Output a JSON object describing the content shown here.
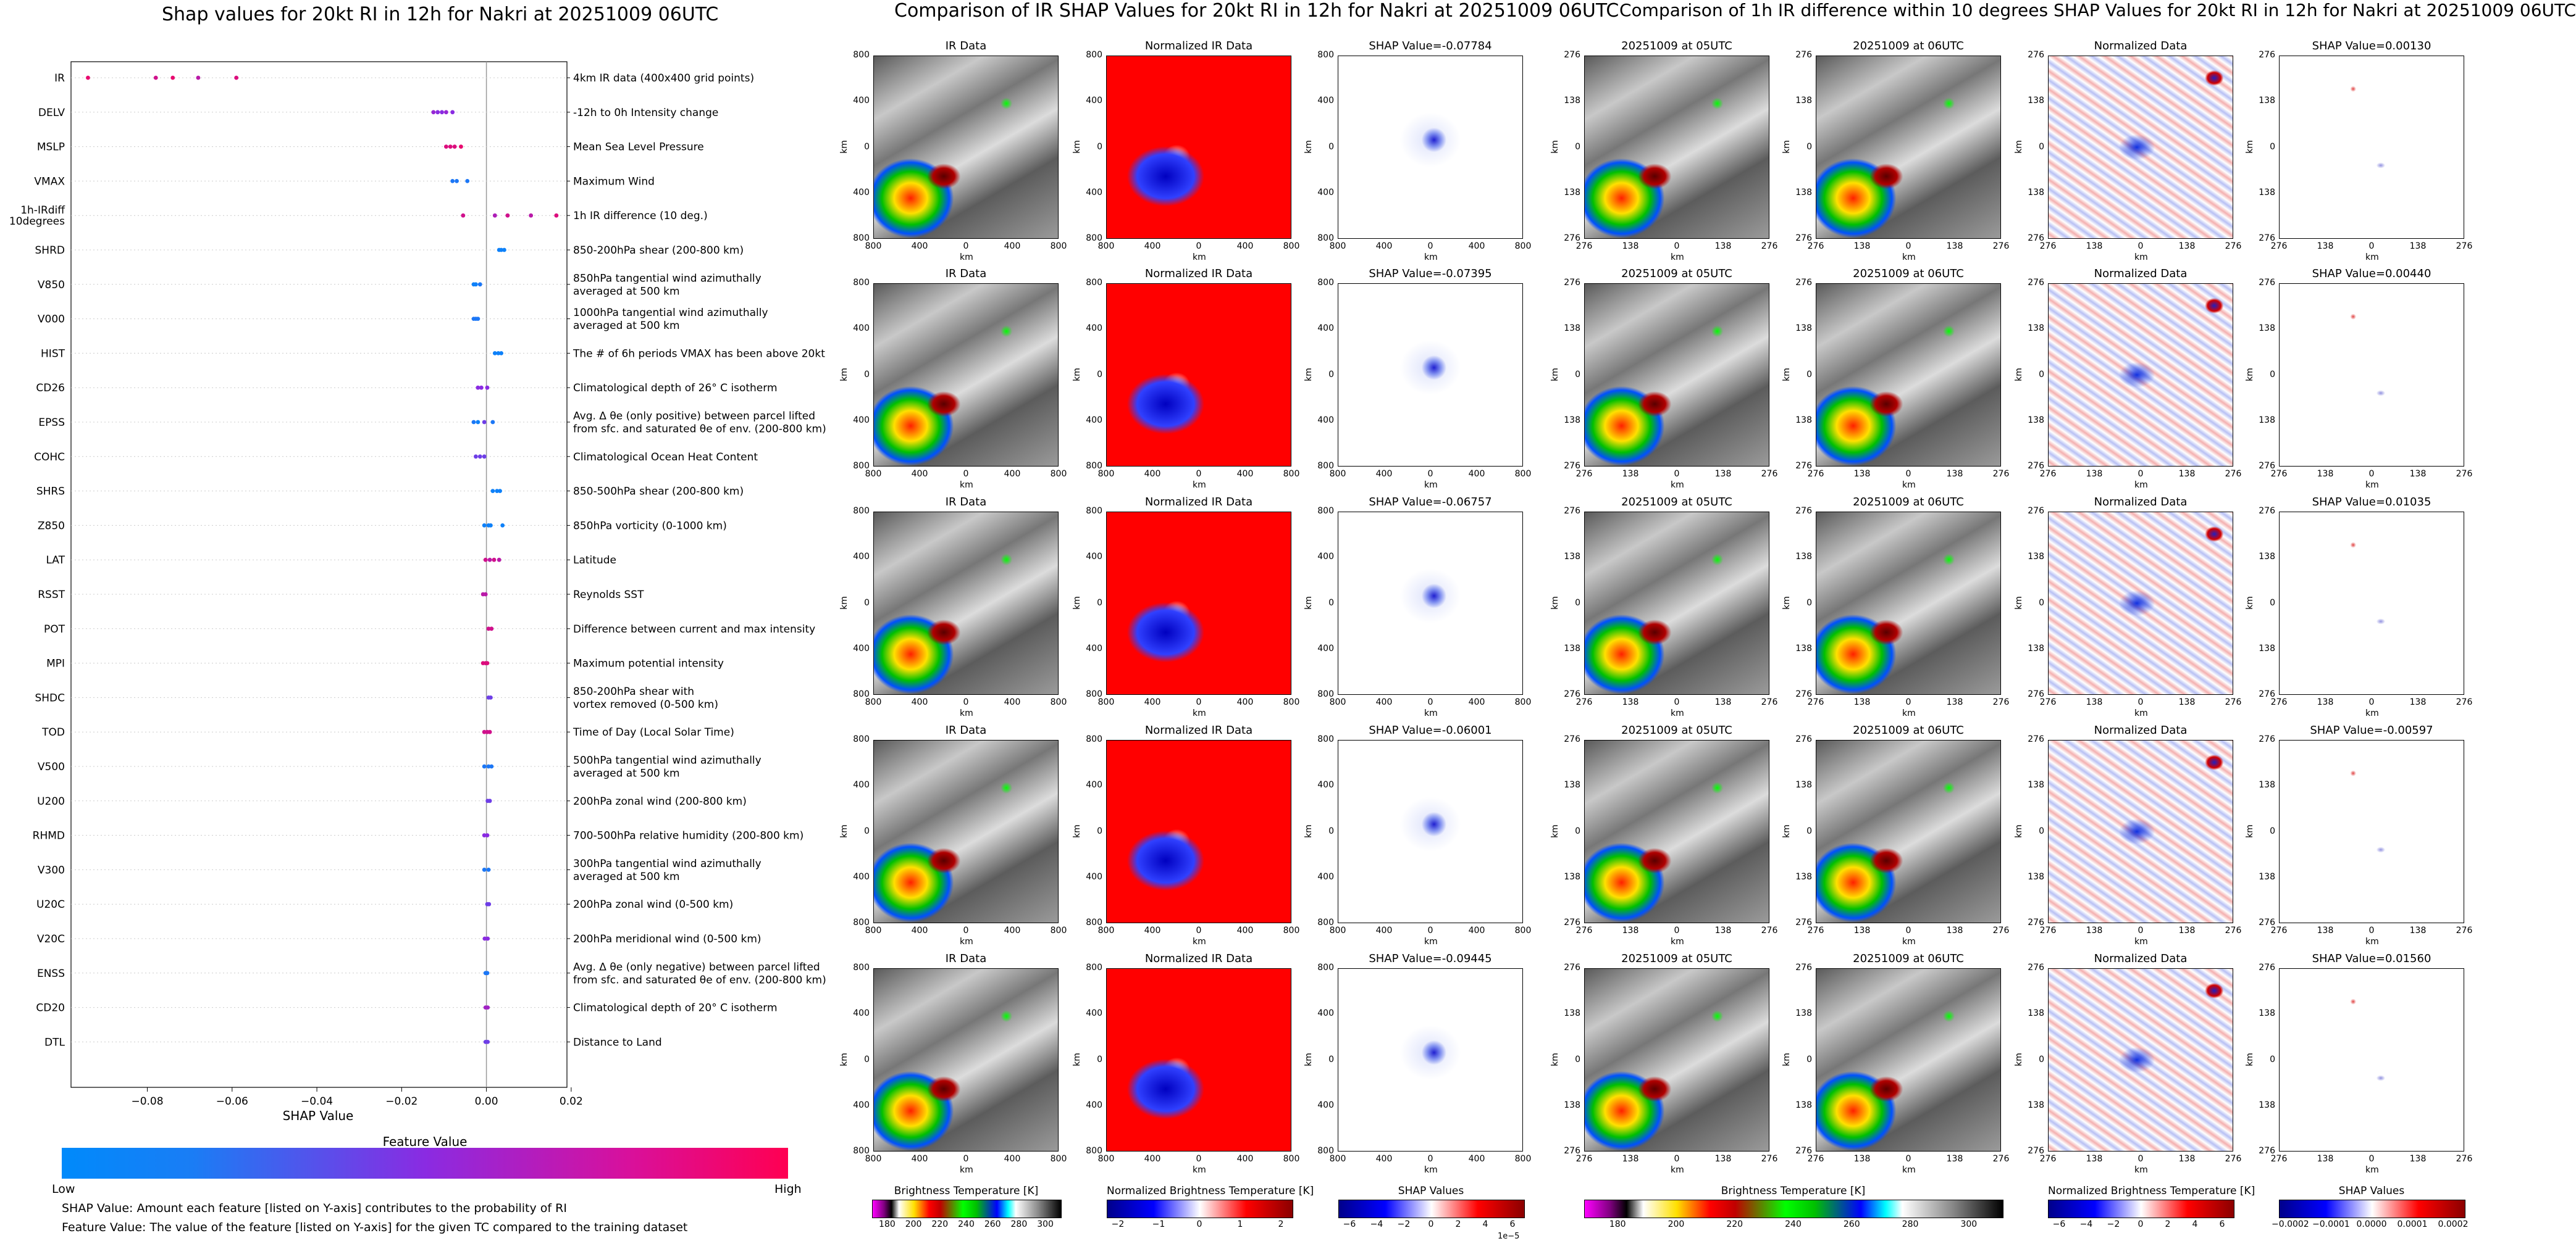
{
  "summary_plot": {
    "title": "Shap values for 20kt RI in 12h for Nakri at 20251009 06UTC",
    "xlabel": "SHAP Value",
    "xticks": [
      "−0.08",
      "−0.06",
      "−0.04",
      "−0.02",
      "0.00",
      "0.02"
    ],
    "colorbar_title": "Feature Value",
    "colorbar_low": "Low",
    "colorbar_high": "High",
    "notes": [
      "SHAP Value: Amount each feature [listed on Y-axis] contributes to the probability of RI",
      "Feature Value: The value of the feature [listed on Y-axis] for the given TC compared to the training dataset"
    ]
  },
  "colors": {
    "low": "#008afb",
    "mid": "#8a2be2",
    "high": "#ff0052"
  },
  "chart_data": {
    "type": "scatter",
    "title": "Shap values for 20kt RI in 12h for Nakri at 20251009 06UTC",
    "xlabel": "SHAP Value",
    "xlim": [
      -0.098,
      0.019
    ],
    "features": [
      {
        "name": "IR",
        "desc": "4km IR data (400x400 grid points)",
        "points": [
          [
            -0.094,
            0.9
          ],
          [
            -0.078,
            0.8
          ],
          [
            -0.074,
            0.9
          ],
          [
            -0.068,
            0.7
          ],
          [
            -0.059,
            0.85
          ]
        ]
      },
      {
        "name": "DELV",
        "desc": "-12h to 0h Intensity change",
        "points": [
          [
            -0.0125,
            0.55
          ],
          [
            -0.0115,
            0.5
          ],
          [
            -0.0105,
            0.5
          ],
          [
            -0.0095,
            0.55
          ],
          [
            -0.008,
            0.5
          ]
        ]
      },
      {
        "name": "MSLP",
        "desc": "Mean Sea Level Pressure",
        "points": [
          [
            -0.0095,
            0.85
          ],
          [
            -0.0085,
            0.85
          ],
          [
            -0.0075,
            0.85
          ],
          [
            -0.006,
            0.9
          ]
        ]
      },
      {
        "name": "VMAX",
        "desc": "Maximum Wind",
        "points": [
          [
            -0.008,
            0.1
          ],
          [
            -0.007,
            0.1
          ],
          [
            -0.0045,
            0.1
          ]
        ]
      },
      {
        "name": "1h-IRdiff\n10degrees",
        "desc": "1h IR difference (10 deg.)",
        "points": [
          [
            -0.0055,
            0.8
          ],
          [
            0.002,
            0.65
          ],
          [
            0.005,
            0.8
          ],
          [
            0.0105,
            0.7
          ],
          [
            0.0165,
            0.85
          ]
        ]
      },
      {
        "name": "SHRD",
        "desc": "850-200hPa shear (200-800 km)",
        "points": [
          [
            0.003,
            0.05
          ],
          [
            0.0035,
            0.05
          ],
          [
            0.0042,
            0.05
          ]
        ]
      },
      {
        "name": "V850",
        "desc": "850hPa tangential wind azimuthally\naveraged at 500 km",
        "points": [
          [
            -0.003,
            0.05
          ],
          [
            -0.0025,
            0.05
          ],
          [
            -0.0015,
            0.1
          ]
        ]
      },
      {
        "name": "V000",
        "desc": "1000hPa tangential wind azimuthally\naveraged at 500 km",
        "points": [
          [
            -0.003,
            0.1
          ],
          [
            -0.0025,
            0.1
          ],
          [
            -0.002,
            0.1
          ]
        ]
      },
      {
        "name": "HIST",
        "desc": "The # of 6h periods VMAX has been above 20kt",
        "points": [
          [
            0.002,
            0.05
          ],
          [
            0.0028,
            0.05
          ],
          [
            0.0035,
            0.05
          ]
        ]
      },
      {
        "name": "CD26",
        "desc": "Climatological depth of 26° C isotherm",
        "points": [
          [
            -0.002,
            0.5
          ],
          [
            -0.0012,
            0.5
          ],
          [
            0.0002,
            0.5
          ]
        ]
      },
      {
        "name": "EPSS",
        "desc": "Avg. Δ θe (only positive) between parcel lifted\nfrom sfc. and saturated θe of env. (200-800 km)",
        "points": [
          [
            -0.003,
            0.1
          ],
          [
            -0.002,
            0.05
          ],
          [
            -0.0005,
            0.4
          ],
          [
            0.0015,
            0.1
          ]
        ]
      },
      {
        "name": "COHC",
        "desc": "Climatological Ocean Heat Content",
        "points": [
          [
            -0.0025,
            0.4
          ],
          [
            -0.0015,
            0.4
          ],
          [
            -0.0005,
            0.4
          ]
        ]
      },
      {
        "name": "SHRS",
        "desc": "850-500hPa shear (200-800 km)",
        "points": [
          [
            0.0015,
            0.05
          ],
          [
            0.0025,
            0.05
          ],
          [
            0.0032,
            0.05
          ]
        ]
      },
      {
        "name": "Z850",
        "desc": "850hPa vorticity (0-1000 km)",
        "points": [
          [
            -0.0005,
            0.05
          ],
          [
            0.0005,
            0.05
          ],
          [
            0.001,
            0.05
          ],
          [
            0.0038,
            0.05
          ]
        ]
      },
      {
        "name": "LAT",
        "desc": "Latitude",
        "points": [
          [
            -0.0002,
            0.8
          ],
          [
            0.0008,
            0.7
          ],
          [
            0.0018,
            0.8
          ],
          [
            0.003,
            0.7
          ]
        ]
      },
      {
        "name": "RSST",
        "desc": "Reynolds SST",
        "points": [
          [
            -0.0008,
            0.7
          ],
          [
            -0.0002,
            0.7
          ]
        ]
      },
      {
        "name": "POT",
        "desc": "Difference between current and max intensity",
        "points": [
          [
            0.0005,
            0.8
          ],
          [
            0.0012,
            0.8
          ]
        ]
      },
      {
        "name": "MPI",
        "desc": "Maximum potential intensity",
        "points": [
          [
            -0.0008,
            0.85
          ],
          [
            -0.0002,
            0.85
          ],
          [
            0.0002,
            0.85
          ]
        ]
      },
      {
        "name": "SHDC",
        "desc": "850-200hPa shear with\nvortex removed (0-500 km)",
        "points": [
          [
            0.0005,
            0.4
          ],
          [
            0.001,
            0.4
          ]
        ]
      },
      {
        "name": "TOD",
        "desc": "Time of Day (Local Solar Time)",
        "points": [
          [
            -0.0005,
            0.8
          ],
          [
            0.0002,
            0.8
          ],
          [
            0.0008,
            0.8
          ]
        ]
      },
      {
        "name": "V500",
        "desc": "500hPa tangential wind azimuthally\naveraged at 500 km",
        "points": [
          [
            -0.0005,
            0.1
          ],
          [
            0.0005,
            0.1
          ],
          [
            0.0012,
            0.1
          ]
        ]
      },
      {
        "name": "U200",
        "desc": "200hPa zonal wind (200-800 km)",
        "points": [
          [
            0.0003,
            0.4
          ],
          [
            0.0008,
            0.4
          ]
        ]
      },
      {
        "name": "RHMD",
        "desc": "700-500hPa relative humidity (200-800 km)",
        "points": [
          [
            -0.0005,
            0.5
          ],
          [
            0.0002,
            0.5
          ]
        ]
      },
      {
        "name": "V300",
        "desc": "300hPa tangential wind azimuthally\naveraged at 500 km",
        "points": [
          [
            -0.0005,
            0.1
          ],
          [
            0.0005,
            0.1
          ]
        ]
      },
      {
        "name": "U20C",
        "desc": "200hPa zonal wind (0-500 km)",
        "points": [
          [
            0.0002,
            0.4
          ],
          [
            0.0006,
            0.4
          ]
        ]
      },
      {
        "name": "V20C",
        "desc": "200hPa meridional wind (0-500 km)",
        "points": [
          [
            -0.0004,
            0.5
          ],
          [
            0.0003,
            0.5
          ]
        ]
      },
      {
        "name": "ENSS",
        "desc": "Avg. Δ θe (only negative) between parcel lifted\nfrom sfc. and saturated θe of env. (200-800 km)",
        "points": [
          [
            -0.0002,
            0.1
          ],
          [
            0.0002,
            0.1
          ]
        ]
      },
      {
        "name": "CD20",
        "desc": "Climatological depth of 20° C isotherm",
        "points": [
          [
            -0.0002,
            0.6
          ],
          [
            0.0003,
            0.6
          ]
        ]
      },
      {
        "name": "DTL",
        "desc": "Distance to Land",
        "points": [
          [
            -0.0002,
            0.4
          ],
          [
            0.0003,
            0.4
          ]
        ]
      }
    ]
  },
  "ir_section": {
    "title": "Comparison of IR SHAP Values for 20kt RI in 12h for Nakri at 20251009 06UTC",
    "col_titles": [
      "IR Data",
      "Normalized IR Data"
    ],
    "shap_values": [
      "SHAP Value=-0.07784",
      "SHAP Value=-0.07395",
      "SHAP Value=-0.06757",
      "SHAP Value=-0.06001",
      "SHAP Value=-0.09445"
    ],
    "axis_label": "km",
    "ticks": [
      "800",
      "400",
      "0",
      "400",
      "800"
    ],
    "colorbars": [
      {
        "label": "Brightness Temperature [K]",
        "ticks": [
          "180",
          "200",
          "220",
          "240",
          "260",
          "280",
          "300"
        ]
      },
      {
        "label": "Normalized Brightness Temperature [K]",
        "ticks": [
          "−2",
          "−1",
          "0",
          "1",
          "2"
        ]
      },
      {
        "label": "SHAP Values",
        "ticks": [
          "−6",
          "−4",
          "−2",
          "0",
          "2",
          "4",
          "6"
        ],
        "offset": "1e−5"
      }
    ]
  },
  "diff_section": {
    "title": "Comparison of 1h IR difference within 10 degrees SHAP Values for 20kt RI in 12h for Nakri at 20251009 06UTC",
    "col_titles": [
      "20251009 at 05UTC",
      "20251009 at 06UTC",
      "Normalized Data"
    ],
    "shap_values": [
      "SHAP Value=0.00130",
      "SHAP Value=0.00440",
      "SHAP Value=0.01035",
      "SHAP Value=-0.00597",
      "SHAP Value=0.01560"
    ],
    "axis_label": "km",
    "ticks": [
      "276",
      "138",
      "0",
      "138",
      "276"
    ],
    "colorbars": [
      {
        "label": "Brightness Temperature [K]",
        "ticks": [
          "180",
          "200",
          "220",
          "240",
          "260",
          "280",
          "300"
        ]
      },
      {
        "label": "Normalized Brightness Temperature [K]",
        "ticks": [
          "−6",
          "−4",
          "−2",
          "0",
          "2",
          "4",
          "6"
        ]
      },
      {
        "label": "SHAP Values",
        "ticks": [
          "−0.0002",
          "−0.0001",
          "0.0000",
          "0.0001",
          "0.0002"
        ]
      }
    ]
  }
}
